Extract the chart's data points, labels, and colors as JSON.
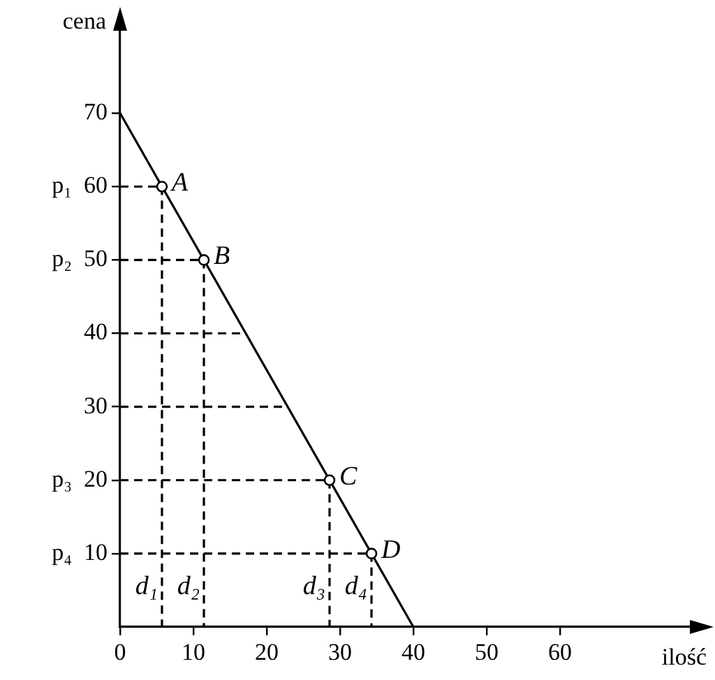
{
  "chart_data": {
    "type": "line",
    "xlabel": "ilość",
    "ylabel": "cena",
    "xlim": [
      0,
      80
    ],
    "ylim": [
      0,
      82
    ],
    "xticks": [
      0,
      10,
      20,
      30,
      40,
      50,
      60
    ],
    "yticks": [
      {
        "value": 10,
        "label": "p₄  10"
      },
      {
        "value": 20,
        "label": "p₃  20"
      },
      30,
      40,
      {
        "value": 50,
        "label": "p₂  50"
      },
      {
        "value": 60,
        "label": "p₁  60"
      },
      70
    ],
    "grid": false,
    "legend": false,
    "series": [
      {
        "color": "#000000",
        "line_style": "solid",
        "marker": "none",
        "x": [
          0,
          40
        ],
        "values": [
          70,
          0
        ]
      },
      {
        "type": "line",
        "color": "#000000",
        "line_style": "dashed",
        "marker": "none",
        "x": [
          0,
          5.71,
          5.71
        ],
        "values": [
          60,
          60,
          0
        ]
      },
      {
        "type": "line",
        "color": "#000000",
        "line_style": "dashed",
        "marker": "none",
        "x": [
          0,
          11.43,
          11.43
        ],
        "values": [
          50,
          50,
          0
        ]
      },
      {
        "type": "line",
        "color": "#000000",
        "line_style": "dashed",
        "marker": "none",
        "x": [
          0,
          28.57,
          28.57
        ],
        "values": [
          20,
          20,
          0
        ]
      },
      {
        "type": "line",
        "color": "#000000",
        "line_style": "dashed",
        "marker": "none",
        "x": [
          0,
          34.29,
          34.29
        ],
        "values": [
          10,
          10,
          0
        ]
      },
      {
        "type": "line",
        "color": "#000000",
        "line_style": "dashed",
        "marker": "none",
        "x": [
          0,
          17.14
        ],
        "values": [
          40,
          40
        ]
      },
      {
        "type": "line",
        "color": "#000000",
        "line_style": "dashed",
        "marker": "none",
        "x": [
          0,
          22.86
        ],
        "values": [
          30,
          30
        ]
      },
      {
        "type": "scatter",
        "color": "#000000",
        "marker": "circle",
        "x": [
          5.71,
          11.43,
          28.57,
          34.29
        ],
        "values": [
          60,
          50,
          20,
          10
        ]
      }
    ],
    "annotations": [
      {
        "text": "A",
        "x": 5.71,
        "y": 60
      },
      {
        "text": "B",
        "x": 11.43,
        "y": 50
      },
      {
        "text": "C",
        "x": 28.57,
        "y": 20
      },
      {
        "text": "D",
        "x": 34.29,
        "y": 10
      },
      {
        "text": "d₁",
        "x": 5.71,
        "y": 5
      },
      {
        "text": "d₂",
        "x": 11.43,
        "y": 5
      },
      {
        "text": "d₃",
        "x": 28.57,
        "y": 5
      },
      {
        "text": "d₄",
        "x": 34.29,
        "y": 5
      }
    ]
  }
}
